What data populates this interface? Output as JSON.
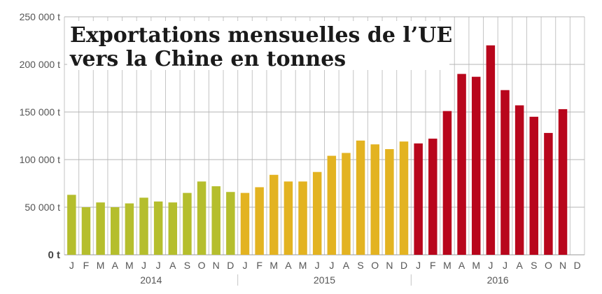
{
  "chart_data": {
    "type": "bar",
    "title_lines": [
      "Exportations mensuelles de l’UE",
      "vers la Chine en tonnes"
    ],
    "xlabel": "",
    "ylabel": "",
    "ylim": [
      0,
      250000
    ],
    "y_ticks": [
      "0 t",
      "50 000 t",
      "100 000 t",
      "150 000 t",
      "200 000 t",
      "250 000 t"
    ],
    "grid": true,
    "legend": "none",
    "month_labels": [
      "J",
      "F",
      "M",
      "A",
      "M",
      "J",
      "J",
      "A",
      "S",
      "O",
      "N",
      "D"
    ],
    "series": [
      {
        "year": "2014",
        "color": "#b5be2d",
        "values": [
          63000,
          50000,
          55000,
          50000,
          54000,
          60000,
          56000,
          55000,
          65000,
          77000,
          72000,
          66000
        ]
      },
      {
        "year": "2015",
        "color": "#e3b321",
        "values": [
          65000,
          71000,
          84000,
          77000,
          77000,
          87000,
          104000,
          107000,
          120000,
          116000,
          111000,
          119000
        ]
      },
      {
        "year": "2016",
        "color": "#b8061c",
        "values": [
          117000,
          122000,
          151000,
          190000,
          187000,
          220000,
          173000,
          157000,
          145000,
          128000,
          153000,
          null
        ]
      }
    ]
  }
}
